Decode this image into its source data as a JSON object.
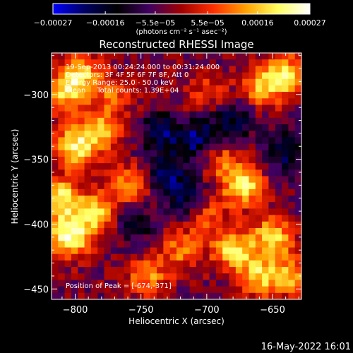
{
  "chart_data": {
    "type": "heatmap",
    "title": "Reconstructed RHESSI Image",
    "xlabel": "Heliocentric X (arcsec)",
    "ylabel": "Heliocentric Y (arcsec)",
    "xlim": [
      -818,
      -628
    ],
    "ylim": [
      -458,
      -268
    ],
    "x_ticks": [
      -800,
      -750,
      -700,
      -650
    ],
    "x_tick_labels": [
      "−800",
      "−750",
      "−700",
      "−650"
    ],
    "y_ticks": [
      -300,
      -350,
      -400,
      -450
    ],
    "y_tick_labels": [
      "−300",
      "−350",
      "−400",
      "−450"
    ],
    "colorbar": {
      "range": [
        -0.00027,
        0.00027
      ],
      "ticks": [
        -0.00027,
        -0.00016,
        -5.5e-05,
        5.5e-05,
        0.00016,
        0.00027
      ],
      "tick_labels": [
        "−0.00027",
        "−0.00016",
        "−5.5e−05",
        "5.5e−05",
        "0.00016",
        "0.00027"
      ],
      "unit_label": "(photons cm⁻² s⁻¹ asec⁻²)",
      "colors": [
        "#0000ff",
        "#000060",
        "#000000",
        "#400060",
        "#a00000",
        "#ff3000",
        "#ffa000",
        "#ffff60",
        "#ffffff"
      ]
    },
    "annotations": [
      "19-Sep-2013 00:24:24.000 to 00:31:24.000",
      "Detectors: 3F 4F 5F 6F 7F 8F, Att 0",
      "Energy Range: 25.0 - 50.0 keV",
      "Clean     Total counts: 1.39E+04"
    ],
    "peak_label": "Position of Peak = [-674,-371]",
    "peak_position": [
      -674,
      -371
    ],
    "image_grid": {
      "blocks": 38,
      "blobs": [
        {
          "x": -805,
          "y": -410,
          "v": 1.0
        },
        {
          "x": -812,
          "y": -380,
          "v": 0.9
        },
        {
          "x": -785,
          "y": -392,
          "v": 0.75
        },
        {
          "x": -800,
          "y": -340,
          "v": 0.85
        },
        {
          "x": -780,
          "y": -328,
          "v": 0.7
        },
        {
          "x": -808,
          "y": -298,
          "v": 0.7
        },
        {
          "x": -795,
          "y": -285,
          "v": 0.65
        },
        {
          "x": -640,
          "y": -285,
          "v": 0.8
        },
        {
          "x": -660,
          "y": -295,
          "v": 0.6
        },
        {
          "x": -672,
          "y": -370,
          "v": 0.9
        },
        {
          "x": -690,
          "y": -350,
          "v": 0.5
        },
        {
          "x": -650,
          "y": -410,
          "v": 0.8
        },
        {
          "x": -680,
          "y": -420,
          "v": 0.8
        },
        {
          "x": -660,
          "y": -440,
          "v": 0.7
        },
        {
          "x": -720,
          "y": -420,
          "v": 0.5
        },
        {
          "x": -760,
          "y": -370,
          "v": 0.55
        },
        {
          "x": -745,
          "y": -440,
          "v": 0.55
        },
        {
          "x": -700,
          "y": -395,
          "v": 0.45
        },
        {
          "x": -635,
          "y": -440,
          "v": 0.65
        },
        {
          "x": -770,
          "y": -300,
          "v": 0.45
        },
        {
          "x": -700,
          "y": -300,
          "v": 0.35
        },
        {
          "x": -735,
          "y": -330,
          "v": -0.6
        },
        {
          "x": -705,
          "y": -335,
          "v": -0.7
        },
        {
          "x": -680,
          "y": -320,
          "v": -0.55
        },
        {
          "x": -730,
          "y": -360,
          "v": -0.55
        },
        {
          "x": -755,
          "y": -400,
          "v": -0.45
        },
        {
          "x": -715,
          "y": -380,
          "v": -0.5
        },
        {
          "x": -640,
          "y": -345,
          "v": -0.55
        }
      ]
    }
  },
  "footer_date": "16-May-2022 16:01"
}
